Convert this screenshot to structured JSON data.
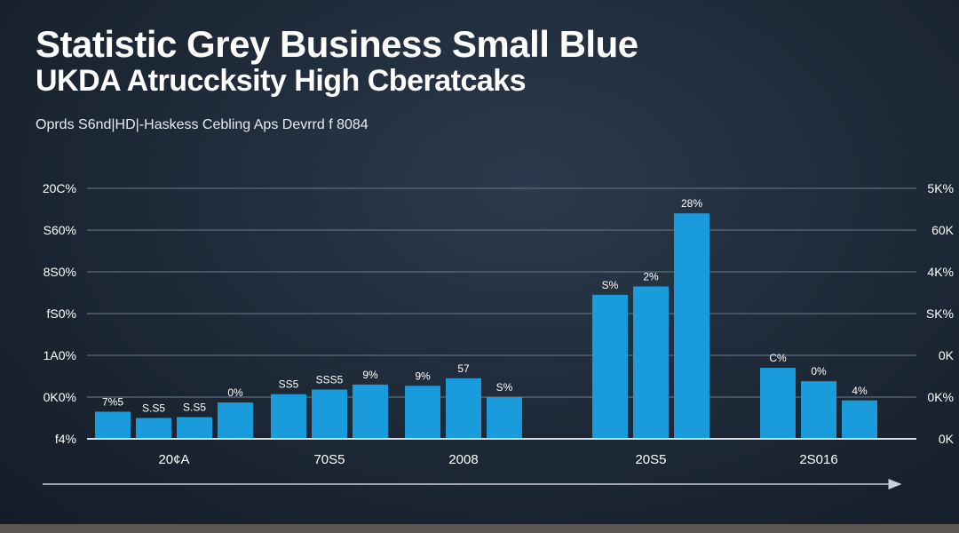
{
  "header": {
    "title_line_1": "Statistic Grey Business Small  Blue",
    "title_line_2": "UKDA Atruccksity High Cberatcaks",
    "subtitle": "Oprds S6nd|HD|-Haskess Cebling Aps Devrrd f 8084"
  },
  "colors": {
    "background": "#1d2836",
    "bar": "#1a9bdc",
    "grid": "#5d6b7a",
    "axis": "#c9d2dc",
    "text": "#ffffff"
  },
  "chart_data": {
    "type": "bar",
    "title": "Statistic Grey Business Small  Blue",
    "subtitle": "Oprds S6nd|HD|-Haskess Cebling Aps Devrrd f 8084",
    "xlabel": "",
    "ylabel": "",
    "ylim": [
      0,
      6
    ],
    "grid": true,
    "legend": "none",
    "y_tick_labels_left": [
      "f4%",
      "0K0%",
      "1A0%",
      "fS0%",
      "8S0%",
      "S60%",
      "20C%"
    ],
    "y_tick_labels_right": [
      "0K",
      "0K%",
      "0K",
      "SK%",
      "4K%",
      "60K",
      "5K%"
    ],
    "groups": [
      {
        "label": "20¢A",
        "bars": [
          {
            "value": 0.65,
            "label": "7%5"
          },
          {
            "value": 0.5,
            "label": "S.S5"
          },
          {
            "value": 0.52,
            "label": "S.S5"
          },
          {
            "value": 0.87,
            "label": "0%"
          }
        ]
      },
      {
        "label": "70S5",
        "bars": [
          {
            "value": 1.07,
            "label": "SS5"
          },
          {
            "value": 1.18,
            "label": "SSS5"
          },
          {
            "value": 1.3,
            "label": "9%"
          }
        ]
      },
      {
        "label": "2008",
        "bars": [
          {
            "value": 1.27,
            "label": "9%"
          },
          {
            "value": 1.45,
            "label": "57"
          },
          {
            "value": 1.0,
            "label": "S%"
          }
        ]
      },
      {
        "label": "20S5",
        "bars": [
          {
            "value": 3.45,
            "label": "S%"
          },
          {
            "value": 3.65,
            "label": "2%"
          },
          {
            "value": 5.4,
            "label": "28%"
          }
        ]
      },
      {
        "label": "2S016",
        "bars": [
          {
            "value": 1.7,
            "label": "C%"
          },
          {
            "value": 1.38,
            "label": "0%"
          },
          {
            "value": 0.92,
            "label": "4%"
          }
        ]
      }
    ]
  }
}
